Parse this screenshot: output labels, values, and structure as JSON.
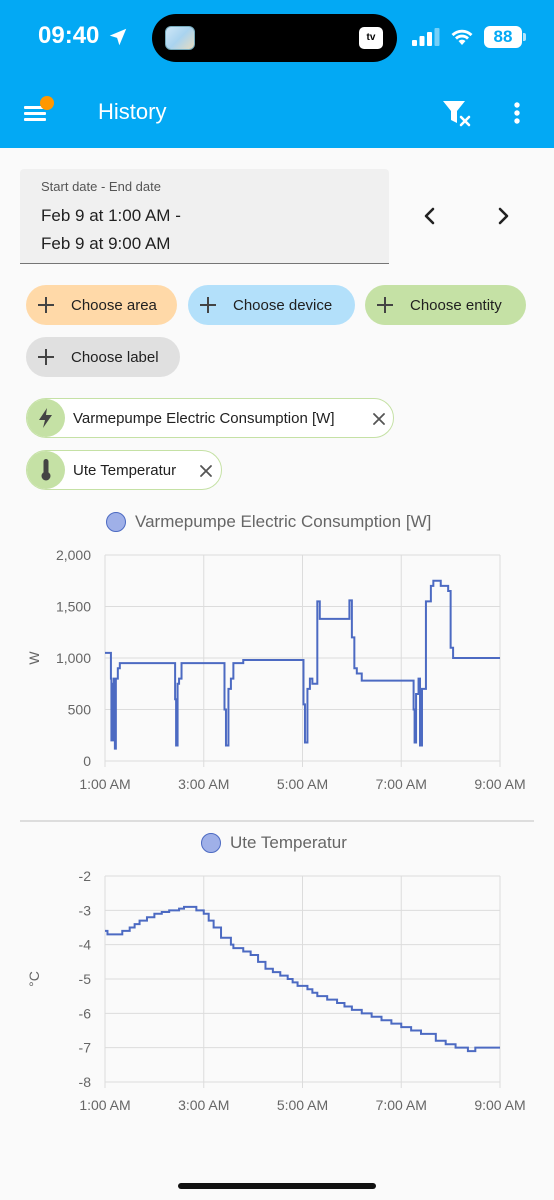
{
  "status_bar": {
    "time": "09:40",
    "battery": "88",
    "island_badge": "tv"
  },
  "app_bar": {
    "title": "History"
  },
  "date_range": {
    "label": "Start date - End date",
    "line1": "Feb 9 at 1:00 AM -",
    "line2": "Feb 9 at 9:00 AM"
  },
  "chips": {
    "area": "Choose area",
    "device": "Choose device",
    "entity": "Choose entity",
    "label": "Choose label"
  },
  "entities": [
    {
      "label": "Varmepumpe Electric Consumption [W]",
      "icon": "lightning-icon"
    },
    {
      "label": "Ute Temperatur",
      "icon": "thermometer-icon"
    }
  ],
  "colors": {
    "accent": "#03a9f4",
    "line": "#4c6ac2",
    "area_chip": "#ffd9a8",
    "device_chip": "#b3e0fa",
    "entity_chip": "#c5e1a5",
    "label_chip": "#e0e0e0"
  },
  "chart_data": [
    {
      "type": "line",
      "legend": "Varmepumpe Electric Consumption [W]",
      "ylabel": "W",
      "ylim": [
        0,
        2000
      ],
      "yticks": [
        "0",
        "500",
        "1,000",
        "1,500",
        "2,000"
      ],
      "xlim": [
        1,
        9
      ],
      "xticks": [
        "1:00 AM",
        "3:00 AM",
        "5:00 AM",
        "7:00 AM",
        "9:00 AM"
      ],
      "series": [
        {
          "x": [
            1.0,
            1.1,
            1.12,
            1.13,
            1.16,
            1.18,
            1.2,
            1.22,
            1.26,
            1.3,
            1.32,
            1.36,
            1.4,
            1.45,
            1.5,
            1.6,
            1.8,
            2.0,
            2.3,
            2.4,
            2.42,
            2.44,
            2.47,
            2.5,
            2.55,
            2.6,
            2.7,
            2.8,
            3.0,
            3.2,
            3.4,
            3.42,
            3.45,
            3.5,
            3.55,
            3.6,
            3.65,
            3.7,
            3.8,
            4.0,
            4.5,
            5.0,
            5.02,
            5.05,
            5.1,
            5.15,
            5.2,
            5.3,
            5.35,
            5.4,
            5.5,
            5.7,
            5.95,
            6.0,
            6.05,
            6.1,
            6.2,
            6.4,
            6.6,
            6.8,
            7.0,
            7.2,
            7.25,
            7.27,
            7.3,
            7.35,
            7.38,
            7.42,
            7.5,
            7.6,
            7.65,
            7.8,
            7.95,
            8.0,
            8.05,
            8.1,
            8.2,
            8.4,
            8.6,
            8.8,
            9.0
          ],
          "y": [
            1050,
            1050,
            800,
            200,
            750,
            800,
            120,
            800,
            900,
            950,
            950,
            950,
            950,
            950,
            950,
            950,
            950,
            950,
            950,
            950,
            600,
            150,
            750,
            800,
            950,
            950,
            950,
            950,
            950,
            950,
            950,
            500,
            150,
            700,
            800,
            950,
            950,
            950,
            980,
            980,
            980,
            980,
            550,
            180,
            700,
            800,
            750,
            1550,
            1380,
            1380,
            1380,
            1380,
            1560,
            1200,
            900,
            850,
            780,
            780,
            780,
            780,
            780,
            780,
            500,
            180,
            650,
            800,
            150,
            700,
            1550,
            1700,
            1750,
            1700,
            1650,
            1100,
            1000,
            1000,
            1000,
            1000,
            1000,
            1000,
            1000
          ]
        }
      ]
    },
    {
      "type": "line",
      "legend": "Ute Temperatur",
      "ylabel": "°C",
      "ylim": [
        -8,
        -2
      ],
      "yticks": [
        "-8",
        "-7",
        "-6",
        "-5",
        "-4",
        "-3",
        "-2"
      ],
      "xlim": [
        1,
        9
      ],
      "xticks": [
        "1:00 AM",
        "3:00 AM",
        "5:00 AM",
        "7:00 AM",
        "9:00 AM"
      ],
      "series": [
        {
          "x": [
            1.0,
            1.05,
            1.35,
            1.5,
            1.6,
            1.7,
            1.85,
            2.0,
            2.15,
            2.3,
            2.5,
            2.6,
            2.8,
            2.85,
            3.0,
            3.1,
            3.2,
            3.35,
            3.55,
            3.6,
            3.8,
            3.95,
            4.1,
            4.25,
            4.4,
            4.55,
            4.7,
            4.8,
            4.9,
            5.1,
            5.2,
            5.3,
            5.5,
            5.7,
            5.85,
            6.0,
            6.2,
            6.4,
            6.6,
            6.8,
            7.0,
            7.2,
            7.4,
            7.55,
            7.7,
            7.9,
            8.1,
            8.2,
            8.35,
            8.5,
            9.0
          ],
          "y": [
            -3.6,
            -3.7,
            -3.6,
            -3.5,
            -3.4,
            -3.3,
            -3.2,
            -3.1,
            -3.05,
            -3.0,
            -2.95,
            -2.9,
            -2.9,
            -3.0,
            -3.1,
            -3.3,
            -3.5,
            -3.8,
            -4.0,
            -4.1,
            -4.2,
            -4.3,
            -4.5,
            -4.7,
            -4.8,
            -4.9,
            -5.0,
            -5.1,
            -5.2,
            -5.3,
            -5.4,
            -5.5,
            -5.6,
            -5.7,
            -5.8,
            -5.9,
            -6.0,
            -6.1,
            -6.2,
            -6.3,
            -6.4,
            -6.5,
            -6.6,
            -6.6,
            -6.8,
            -6.9,
            -7.0,
            -7.0,
            -7.1,
            -7.0,
            -7.0
          ]
        }
      ]
    }
  ]
}
